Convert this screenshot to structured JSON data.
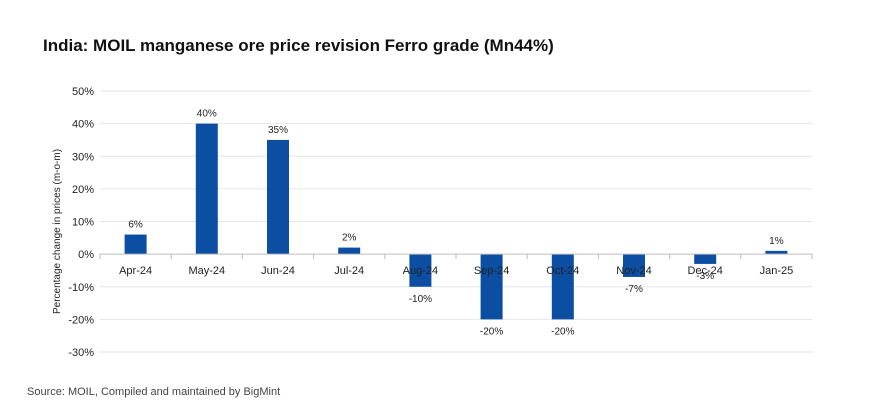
{
  "title": "India: MOIL manganese ore price revision Ferro grade (Mn44%)",
  "source": "Source: MOIL, Compiled and maintained by BigMint",
  "chart_data": {
    "type": "bar",
    "title": "India: MOIL manganese ore price revision Ferro grade (Mn44%)",
    "ylabel": "Percentage change in prices (m-o-m)",
    "xlabel": "",
    "categories": [
      "Apr-24",
      "May-24",
      "Jun-24",
      "Jul-24",
      "Aug-24",
      "Sep-24",
      "Oct-24",
      "Nov-24",
      "Dec-24",
      "Jan-25"
    ],
    "values": [
      6,
      40,
      35,
      2,
      -10,
      -20,
      -20,
      -7,
      -3,
      1
    ],
    "data_labels": [
      "6%",
      "40%",
      "35%",
      "2%",
      "-10%",
      "-20%",
      "-20%",
      "-7%",
      "-3%",
      "1%"
    ],
    "ylim": [
      -30,
      50
    ],
    "yticks": [
      50,
      40,
      30,
      20,
      10,
      0,
      -10,
      -20,
      -30
    ],
    "ytick_labels": [
      "50%",
      "40%",
      "30%",
      "20%",
      "10%",
      "0%",
      "-10%",
      "-20%",
      "-30%"
    ],
    "grid": true,
    "bar_color": "#0b4ea2",
    "grid_color": "#e6e6e6",
    "axis_color": "#bdbdbd"
  }
}
